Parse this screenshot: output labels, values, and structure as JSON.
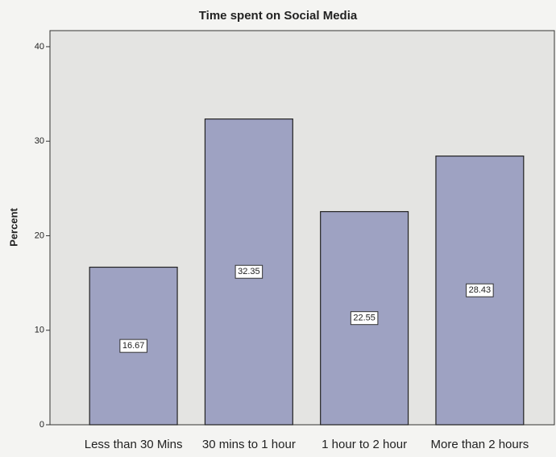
{
  "chart_data": {
    "type": "bar",
    "title": "Time spent on Social Media",
    "y_label": "Percent",
    "categories": [
      "Less than 30 Mins",
      "30 mins to 1 hour",
      "1 hour to 2 hour",
      "More than 2 hours"
    ],
    "values": [
      16.67,
      32.35,
      22.55,
      28.43
    ],
    "color": "#9ea2c2",
    "ylim": [
      0,
      41.7
    ],
    "yticks": [
      0,
      10,
      20,
      30,
      40
    ],
    "grid": false
  }
}
